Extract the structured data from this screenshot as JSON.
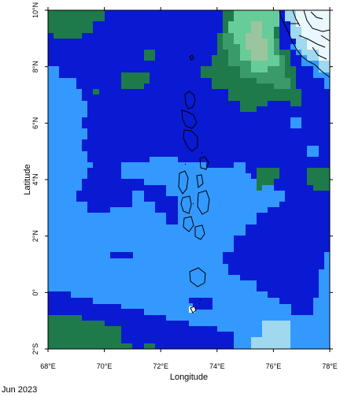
{
  "map": {
    "xlabel": "Longitude",
    "ylabel": "Latitude",
    "lon_range": [
      68,
      78
    ],
    "lat_range": [
      -2,
      10
    ],
    "lon_ticks": [
      {
        "value": 68,
        "label": "68°E"
      },
      {
        "value": 70,
        "label": "70°E"
      },
      {
        "value": 72,
        "label": "72°E"
      },
      {
        "value": 74,
        "label": "74°E"
      },
      {
        "value": 76,
        "label": "76°E"
      },
      {
        "value": 78,
        "label": "78°E"
      }
    ],
    "lat_ticks": [
      {
        "value": -2,
        "label": "2°S"
      },
      {
        "value": 0,
        "label": "0°"
      },
      {
        "value": 2,
        "label": "2°N"
      },
      {
        "value": 4,
        "label": "4°N"
      },
      {
        "value": 6,
        "label": "6°N"
      },
      {
        "value": 8,
        "label": "8°N"
      },
      {
        "value": 10,
        "label": "10°N"
      }
    ],
    "colors": {
      "light_blue": "#3399ff",
      "dark_blue": "#0a1ad2",
      "green": "#1e7a4a",
      "medium_green": "#3a9a6a",
      "light_green": "#66cc99",
      "pale_green": "#9bc59e",
      "cyan": "#9fd8ef",
      "white": "#eaf7fd"
    }
  },
  "caption": "Jun 2023"
}
